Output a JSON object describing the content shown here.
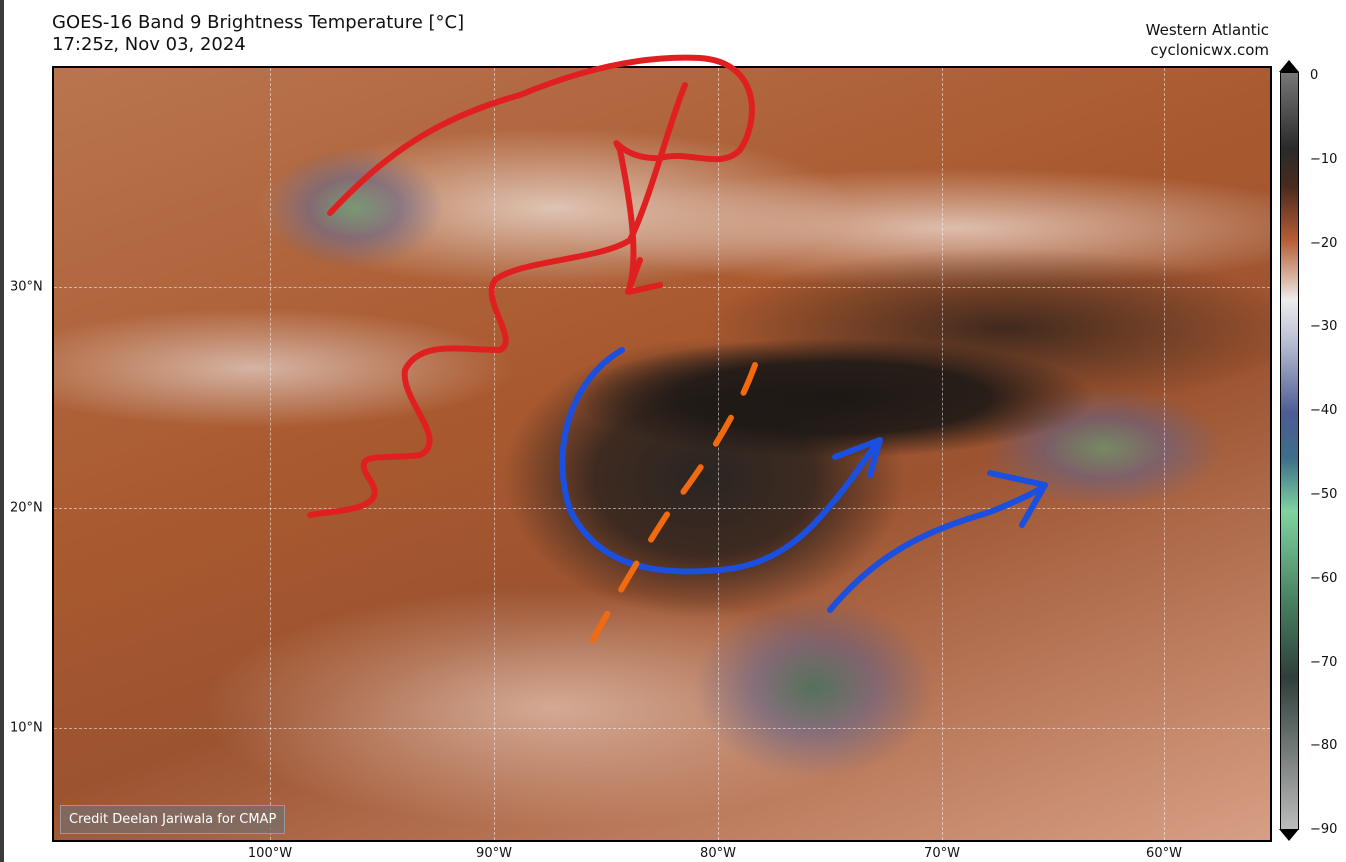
{
  "title": {
    "line1": "GOES-16 Band 9 Brightness Temperature [°C]",
    "line2": "17:25z, Nov 03, 2024"
  },
  "source": {
    "region": "Western Atlantic",
    "site": "cyclonicwx.com"
  },
  "credit": "Credit Deelan Jariwala for CMAP",
  "colorbar": {
    "ticks": [
      "0",
      "−10",
      "−20",
      "−30",
      "−40",
      "−50",
      "−60",
      "−70",
      "−80",
      "−90"
    ],
    "range": [
      -90,
      0
    ],
    "extend": "both"
  },
  "axes": {
    "lon_ticks": [
      "100°W",
      "90°W",
      "80°W",
      "70°W",
      "60°W"
    ],
    "lat_ticks": [
      "30°N",
      "20°N",
      "10°N"
    ]
  },
  "annotations": {
    "colors": {
      "red": "#e02020",
      "blue": "#1a4fe0",
      "orange": "#f26a10"
    }
  }
}
